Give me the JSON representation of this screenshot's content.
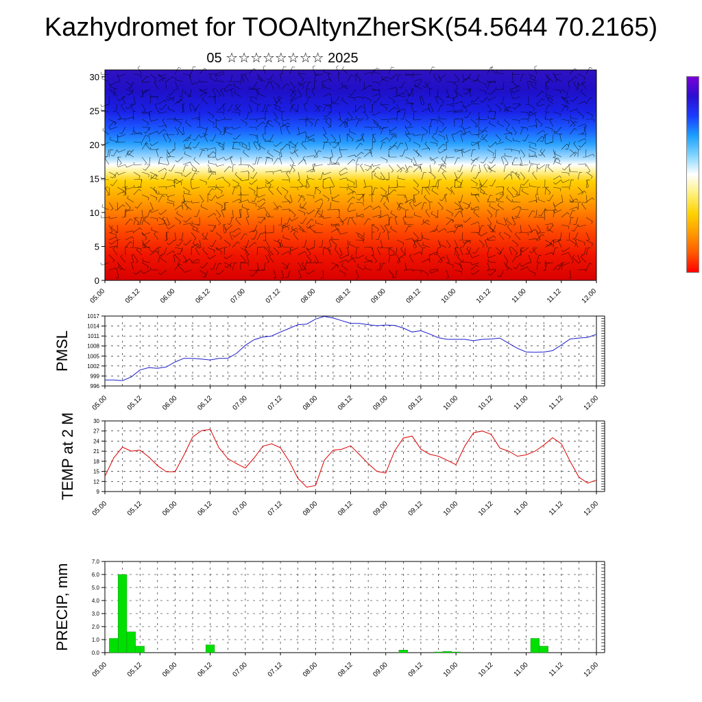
{
  "header": {
    "title": "Kazhydromet for TOOAltynZherSK(54.5644 70.2165)",
    "subtitle": "05 ☆☆☆☆☆☆☆☆ 2025"
  },
  "colors": {
    "pmsl_line": "#1a1acc",
    "temp_line": "#dd0000",
    "precip_bar": "#00e000",
    "colorbar_stops": [
      "#ff0000",
      "#ff5a00",
      "#ff9a00",
      "#ffd200",
      "#fff07a",
      "#ffffff",
      "#7fd4ff",
      "#1a9eff",
      "#1a3cff",
      "#2a0fd2",
      "#7a00d8"
    ]
  },
  "chart_data": [
    {
      "type": "heatmap",
      "title": "",
      "xlabel": "",
      "ylabel": "",
      "x_tick_labels": [
        "05.00",
        "05.12",
        "06.00",
        "06.12",
        "07.00",
        "07.12",
        "08.00",
        "08.12",
        "09.00",
        "09.12",
        "10.00",
        "10.12",
        "11.00",
        "11.12",
        "12.00"
      ],
      "y_ticks": [
        0,
        5,
        10,
        15,
        20,
        25,
        30
      ],
      "ylim": [
        0,
        31
      ],
      "overlay": "wind barbs",
      "colorbar": "vertical, right side, no labels"
    },
    {
      "type": "line",
      "ylabel": "PMSL",
      "ylim": [
        996,
        1017
      ],
      "y_ticks": [
        996,
        999,
        1002,
        1005,
        1008,
        1011,
        1014,
        1017
      ],
      "x_tick_labels": [
        "05.00",
        "05.12",
        "06.00",
        "06.12",
        "07.00",
        "07.12",
        "08.00",
        "08.12",
        "09.00",
        "09.12",
        "10.00",
        "10.12",
        "11.00",
        "11.12",
        "12.00"
      ],
      "grid": true,
      "step_hours": 3,
      "series": [
        {
          "values": [
            997.8,
            997.8,
            997.6,
            998.7,
            1000.8,
            1001.5,
            1001.3,
            1001.7,
            1003.2,
            1004.3,
            1004.3,
            1004.1,
            1003.8,
            1004.3,
            1004.3,
            1005.8,
            1008.2,
            1009.9,
            1010.7,
            1011.0,
            1012.2,
            1013.3,
            1014.4,
            1014.6,
            1016.1,
            1016.9,
            1016.4,
            1015.6,
            1014.8,
            1014.8,
            1014.4,
            1014.1,
            1014.3,
            1014.2,
            1013.4,
            1012.2,
            1012.6,
            1011.6,
            1010.5,
            1010.0,
            1010.0,
            1010.0,
            1009.6,
            1010.0,
            1010.1,
            1010.4,
            1008.8,
            1007.3,
            1006.2,
            1006.1,
            1006.2,
            1006.6,
            1008.3,
            1010.1,
            1010.4,
            1010.6,
            1011.5
          ]
        }
      ]
    },
    {
      "type": "line",
      "ylabel": "TEMP at 2 M",
      "ylim": [
        9,
        30
      ],
      "y_ticks": [
        9,
        12,
        15,
        18,
        21,
        24,
        27,
        30
      ],
      "x_tick_labels": [
        "05.00",
        "05.12",
        "06.00",
        "06.12",
        "07.00",
        "07.12",
        "08.00",
        "08.12",
        "09.00",
        "09.12",
        "10.00",
        "10.12",
        "11.00",
        "11.12",
        "12.00"
      ],
      "grid": true,
      "step_hours": 3,
      "series": [
        {
          "values": [
            13.5,
            19,
            22.2,
            21,
            21.3,
            19.3,
            16.7,
            14.9,
            14.9,
            19.8,
            25.2,
            27.1,
            27.5,
            22,
            18.8,
            17.3,
            16,
            19,
            22.5,
            23.2,
            22,
            18,
            12.9,
            10.3,
            10.8,
            18.3,
            21.3,
            21.6,
            22.6,
            20,
            17.3,
            15,
            14.5,
            21,
            24.9,
            25.5,
            21.6,
            20.1,
            19.5,
            18.3,
            17,
            22.5,
            26.5,
            27,
            26,
            21.9,
            21,
            19.5,
            19.9,
            21,
            22.8,
            25,
            23.2,
            18,
            13.3,
            11.5,
            12.4
          ]
        }
      ]
    },
    {
      "type": "bar",
      "ylabel": "PRECIP, mm",
      "ylim": [
        0,
        7
      ],
      "y_ticks": [
        "0.0",
        "1.0",
        "2.0",
        "3.0",
        "4.0",
        "5.0",
        "6.0",
        "7.0"
      ],
      "x_tick_labels": [
        "05.00",
        "05.12",
        "06.00",
        "06.12",
        "07.00",
        "07.12",
        "08.00",
        "08.12",
        "09.00",
        "09.12",
        "10.00",
        "10.12",
        "11.00",
        "11.12",
        "12.00"
      ],
      "grid": true,
      "step_hours": 3,
      "values": [
        0,
        1.1,
        6.0,
        1.6,
        0.5,
        0,
        0,
        0,
        0,
        0,
        0,
        0,
        0.6,
        0,
        0,
        0,
        0,
        0,
        0,
        0,
        0,
        0,
        0,
        0,
        0,
        0,
        0,
        0,
        0,
        0,
        0,
        0,
        0,
        0,
        0.2,
        0,
        0,
        0,
        0.05,
        0.1,
        0.05,
        0,
        0,
        0,
        0,
        0,
        0,
        0,
        0,
        1.1,
        0.5,
        0,
        0,
        0,
        0,
        0,
        0
      ]
    }
  ]
}
